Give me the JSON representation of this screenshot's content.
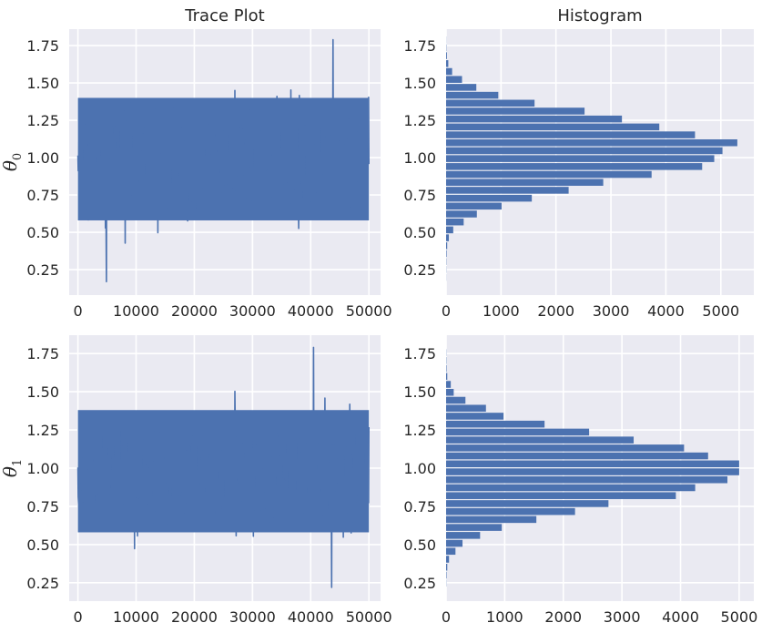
{
  "colors": {
    "background": "#eaeaf2",
    "series": "#4c72b0",
    "grid": "#ffffff",
    "text": "#262626"
  },
  "chart_data": [
    {
      "type": "line",
      "title": "Trace Plot",
      "ylabel": "θ",
      "ylabel_sub": "0",
      "xlim": [
        -1500,
        52000
      ],
      "ylim": [
        0.08,
        1.86
      ],
      "xticks": [
        0,
        10000,
        20000,
        30000,
        40000,
        50000
      ],
      "yticks": [
        0.25,
        0.5,
        0.75,
        1.0,
        1.25,
        1.5,
        1.75
      ],
      "grid": true,
      "series": [
        {
          "x_range": [
            0,
            50000
          ],
          "center": 0.98,
          "band": [
            0.58,
            1.4
          ],
          "min": 0.17,
          "max": 1.79,
          "x_at_min": 4900,
          "x_at_max": 43800
        }
      ]
    },
    {
      "type": "bar",
      "orientation": "horizontal",
      "title": "Histogram",
      "xlim": [
        0,
        5600
      ],
      "ylim": [
        0.08,
        1.86
      ],
      "xticks": [
        0,
        1000,
        2000,
        3000,
        4000,
        5000
      ],
      "yticks": [
        0.25,
        0.5,
        0.75,
        1.0,
        1.25,
        1.5,
        1.75
      ],
      "grid": true,
      "bins": [
        0.172,
        0.225,
        0.278,
        0.331,
        0.384,
        0.437,
        0.49,
        0.543,
        0.596,
        0.649,
        0.702,
        0.755,
        0.808,
        0.861,
        0.914,
        0.967,
        1.02,
        1.073,
        1.126,
        1.179,
        1.232,
        1.285,
        1.338,
        1.391,
        1.444,
        1.497,
        1.55,
        1.603,
        1.656,
        1.709,
        1.762,
        1.815
      ],
      "counts": [
        2,
        3,
        5,
        10,
        20,
        50,
        130,
        320,
        560,
        1010,
        1560,
        2230,
        2860,
        3740,
        4660,
        4880,
        5030,
        5300,
        4530,
        3880,
        3200,
        2520,
        1610,
        950,
        550,
        290,
        110,
        40,
        15,
        5,
        2
      ]
    },
    {
      "type": "line",
      "ylabel": "θ",
      "ylabel_sub": "1",
      "xlim": [
        -1500,
        52000
      ],
      "ylim": [
        0.13,
        1.87
      ],
      "xticks": [
        0,
        10000,
        20000,
        30000,
        40000,
        50000
      ],
      "yticks": [
        0.25,
        0.5,
        0.75,
        1.0,
        1.25,
        1.5,
        1.75
      ],
      "grid": true,
      "series": [
        {
          "x_range": [
            0,
            50000
          ],
          "center": 0.97,
          "band": [
            0.58,
            1.38
          ],
          "min": 0.22,
          "max": 1.79,
          "x_at_min": 43600,
          "x_at_max": 40500
        }
      ]
    },
    {
      "type": "bar",
      "orientation": "horizontal",
      "xlim": [
        0,
        5250
      ],
      "ylim": [
        0.13,
        1.87
      ],
      "xticks": [
        0,
        1000,
        2000,
        3000,
        4000,
        5000
      ],
      "yticks": [
        0.25,
        0.5,
        0.75,
        1.0,
        1.25,
        1.5,
        1.75
      ],
      "grid": true,
      "bins": [
        0.222,
        0.274,
        0.326,
        0.378,
        0.43,
        0.482,
        0.534,
        0.586,
        0.638,
        0.69,
        0.742,
        0.794,
        0.846,
        0.898,
        0.95,
        1.002,
        1.054,
        1.106,
        1.158,
        1.21,
        1.262,
        1.314,
        1.366,
        1.418,
        1.47,
        1.522,
        1.574,
        1.626,
        1.678,
        1.73,
        1.782
      ],
      "counts": [
        3,
        8,
        20,
        50,
        160,
        280,
        580,
        950,
        1540,
        2200,
        2770,
        3920,
        4250,
        4800,
        5000,
        5000,
        4470,
        4060,
        3200,
        2440,
        1680,
        980,
        680,
        330,
        130,
        80,
        20,
        8,
        5,
        3
      ]
    }
  ]
}
